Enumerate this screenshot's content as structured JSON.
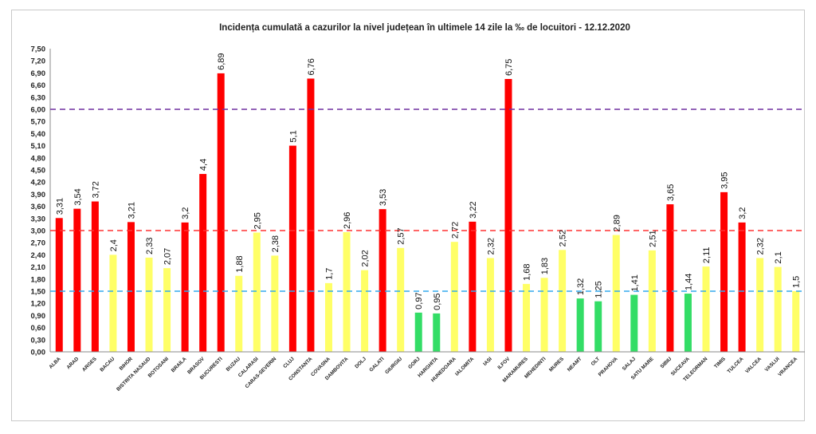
{
  "chart_data": {
    "type": "bar",
    "title": "Incidența cumulată a cazurilor la nivel județean în ultimele 14 zile   la ‰ de locuitori  - 12.12.2020",
    "xlabel": "",
    "ylabel": "",
    "ylim": [
      0,
      7.5
    ],
    "yticks": [
      "0,00",
      "0,30",
      "0,60",
      "0,90",
      "1,20",
      "1,50",
      "1,80",
      "2,10",
      "2,40",
      "2,70",
      "3,00",
      "3,30",
      "3,60",
      "3,90",
      "4,20",
      "4,50",
      "4,80",
      "5,10",
      "5,40",
      "5,70",
      "6,00",
      "6,30",
      "6,60",
      "6,90",
      "7,20",
      "7,50"
    ],
    "grid": false,
    "legend": "none",
    "categories": [
      "ALBA",
      "ARAD",
      "ARGES",
      "BACAU",
      "BIHOR",
      "BISTRITA NASAUD",
      "BOTOSANI",
      "BRAILA",
      "BRASOV",
      "BUCURESTI",
      "BUZAU",
      "CALARASI",
      "CARAS-SEVERIN",
      "CLUJ",
      "CONSTANTA",
      "COVASNA",
      "DAMBOVITA",
      "DOLJ",
      "GALATI",
      "GIURGIU",
      "GORJ",
      "HARGHITA",
      "HUNEDOARA",
      "IALOMITA",
      "IASI",
      "ILFOV",
      "MARAMURES",
      "MEHEDINTI",
      "MURES",
      "NEAMT",
      "OLT",
      "PRAHOVA",
      "SALAJ",
      "SATU MARE",
      "SIBIU",
      "SUCEAVA",
      "TELEORMAN",
      "TIMIS",
      "TULCEA",
      "VALCEA",
      "VASLUI",
      "VRANCEA"
    ],
    "values": [
      3.31,
      3.54,
      3.72,
      2.4,
      3.21,
      2.33,
      2.07,
      3.2,
      4.4,
      6.89,
      1.88,
      2.95,
      2.38,
      5.1,
      6.76,
      1.7,
      2.96,
      2.02,
      3.53,
      2.57,
      0.97,
      0.95,
      2.72,
      3.22,
      2.32,
      6.75,
      1.68,
      1.83,
      2.52,
      1.32,
      1.25,
      2.89,
      1.41,
      2.51,
      3.65,
      1.44,
      2.11,
      3.95,
      3.2,
      2.32,
      2.1,
      1.5
    ],
    "labels": [
      "3,31",
      "3,54",
      "3,72",
      "2,4",
      "3,21",
      "2,33",
      "2,07",
      "3,2",
      "4,4",
      "6,89",
      "1,88",
      "2,95",
      "2,38",
      "5,1",
      "6,76",
      "1,7",
      "2,96",
      "2,02",
      "3,53",
      "2,57",
      "0,97",
      "0,95",
      "2,72",
      "3,22",
      "2,32",
      "6,75",
      "1,68",
      "1,83",
      "2,52",
      "1,32",
      "1,25",
      "2,89",
      "1,41",
      "2,51",
      "3,65",
      "1,44",
      "2,11",
      "3,95",
      "3,2",
      "2,32",
      "2,1",
      "1,5"
    ],
    "colors": {
      "red": "#ff0000",
      "yellow": "#ffff66",
      "green": "#33dd66",
      "line_6": "#7030a0",
      "line_3": "#ff3333",
      "line_1_5": "#33aaee",
      "axis": "#888888"
    },
    "reference_lines": [
      6.0,
      3.0,
      1.5
    ]
  }
}
